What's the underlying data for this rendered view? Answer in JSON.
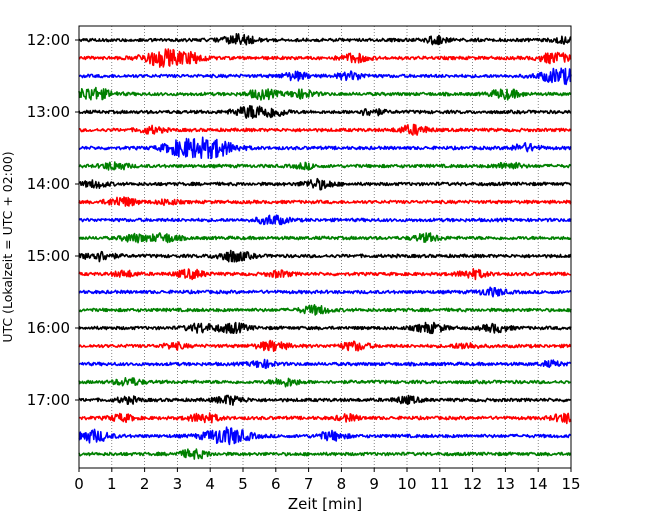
{
  "chart_data": {
    "type": "line",
    "title": "",
    "xlabel": "Zeit  [min]",
    "ylabel": "UTC (Lokalzeit = UTC + 02:00)",
    "xlim": [
      0,
      15
    ],
    "x_ticks": [
      "0",
      "1",
      "2",
      "3",
      "4",
      "5",
      "6",
      "7",
      "8",
      "9",
      "10",
      "11",
      "12",
      "13",
      "14",
      "15"
    ],
    "y_ticks": [
      "12:00",
      "13:00",
      "14:00",
      "15:00",
      "16:00",
      "17:00"
    ],
    "grid": "vertical dotted at each minute",
    "trace_interval_minutes": 15,
    "trace_colors": [
      "#000000",
      "#ff0000",
      "#0000ff",
      "#008000"
    ],
    "traces": [
      {
        "start": "12:00",
        "color": "#000000",
        "bursts": [
          [
            4.9,
            0.6
          ],
          [
            10.9,
            0.4
          ],
          [
            14.8,
            0.35
          ]
        ]
      },
      {
        "start": "12:15",
        "color": "#ff0000",
        "bursts": [
          [
            2.6,
            1.0
          ],
          [
            3.5,
            0.45
          ],
          [
            8.4,
            0.5
          ],
          [
            14.5,
            0.6
          ]
        ]
      },
      {
        "start": "12:30",
        "color": "#0000ff",
        "bursts": [
          [
            6.6,
            0.45
          ],
          [
            8.3,
            0.45
          ],
          [
            14.7,
            0.9
          ]
        ]
      },
      {
        "start": "12:45",
        "color": "#008000",
        "bursts": [
          [
            0.4,
            0.75
          ],
          [
            5.6,
            0.55
          ],
          [
            6.8,
            0.45
          ],
          [
            13.0,
            0.55
          ]
        ]
      },
      {
        "start": "13:00",
        "color": "#000000",
        "bursts": [
          [
            5.3,
            0.75
          ],
          [
            6.0,
            0.4
          ],
          [
            8.9,
            0.4
          ]
        ]
      },
      {
        "start": "13:15",
        "color": "#ff0000",
        "bursts": [
          [
            2.2,
            0.4
          ],
          [
            10.2,
            0.55
          ]
        ]
      },
      {
        "start": "13:30",
        "color": "#0000ff",
        "bursts": [
          [
            3.2,
            0.9
          ],
          [
            4.1,
            1.0
          ],
          [
            13.6,
            0.45
          ]
        ]
      },
      {
        "start": "13:45",
        "color": "#008000",
        "bursts": [
          [
            1.1,
            0.45
          ],
          [
            6.9,
            0.3
          ],
          [
            13.1,
            0.4
          ]
        ]
      },
      {
        "start": "14:00",
        "color": "#000000",
        "bursts": [
          [
            0.5,
            0.4
          ],
          [
            7.3,
            0.55
          ]
        ]
      },
      {
        "start": "14:15",
        "color": "#ff0000",
        "bursts": [
          [
            1.3,
            0.55
          ],
          [
            2.7,
            0.3
          ]
        ]
      },
      {
        "start": "14:30",
        "color": "#0000ff",
        "bursts": [
          [
            5.9,
            0.55
          ]
        ]
      },
      {
        "start": "14:45",
        "color": "#008000",
        "bursts": [
          [
            1.7,
            0.45
          ],
          [
            2.6,
            0.5
          ],
          [
            10.6,
            0.45
          ]
        ]
      },
      {
        "start": "15:00",
        "color": "#000000",
        "bursts": [
          [
            0.6,
            0.55
          ],
          [
            4.7,
            0.65
          ]
        ]
      },
      {
        "start": "15:15",
        "color": "#ff0000",
        "bursts": [
          [
            1.4,
            0.35
          ],
          [
            3.4,
            0.5
          ],
          [
            6.1,
            0.35
          ],
          [
            12.0,
            0.5
          ]
        ]
      },
      {
        "start": "15:30",
        "color": "#0000ff",
        "bursts": [
          [
            12.6,
            0.45
          ]
        ]
      },
      {
        "start": "15:45",
        "color": "#008000",
        "bursts": [
          [
            7.2,
            0.5
          ]
        ]
      },
      {
        "start": "16:00",
        "color": "#000000",
        "bursts": [
          [
            3.7,
            0.5
          ],
          [
            4.7,
            0.55
          ],
          [
            10.7,
            0.55
          ],
          [
            12.7,
            0.45
          ]
        ]
      },
      {
        "start": "16:15",
        "color": "#ff0000",
        "bursts": [
          [
            2.9,
            0.35
          ],
          [
            5.9,
            0.55
          ],
          [
            8.4,
            0.5
          ],
          [
            11.8,
            0.35
          ]
        ]
      },
      {
        "start": "16:30",
        "color": "#0000ff",
        "bursts": [
          [
            5.6,
            0.4
          ],
          [
            14.4,
            0.3
          ]
        ]
      },
      {
        "start": "16:45",
        "color": "#008000",
        "bursts": [
          [
            1.5,
            0.45
          ],
          [
            6.3,
            0.45
          ]
        ]
      },
      {
        "start": "17:00",
        "color": "#000000",
        "bursts": [
          [
            1.5,
            0.35
          ],
          [
            4.6,
            0.5
          ],
          [
            10.0,
            0.4
          ]
        ]
      },
      {
        "start": "17:15",
        "color": "#ff0000",
        "bursts": [
          [
            1.3,
            0.4
          ],
          [
            3.8,
            0.55
          ],
          [
            8.2,
            0.35
          ],
          [
            14.9,
            0.55
          ]
        ]
      },
      {
        "start": "17:30",
        "color": "#0000ff",
        "bursts": [
          [
            0.4,
            0.7
          ],
          [
            4.5,
            1.0
          ],
          [
            7.7,
            0.5
          ]
        ]
      },
      {
        "start": "17:45",
        "color": "#008000",
        "bursts": [
          [
            3.5,
            0.5
          ]
        ]
      }
    ]
  }
}
